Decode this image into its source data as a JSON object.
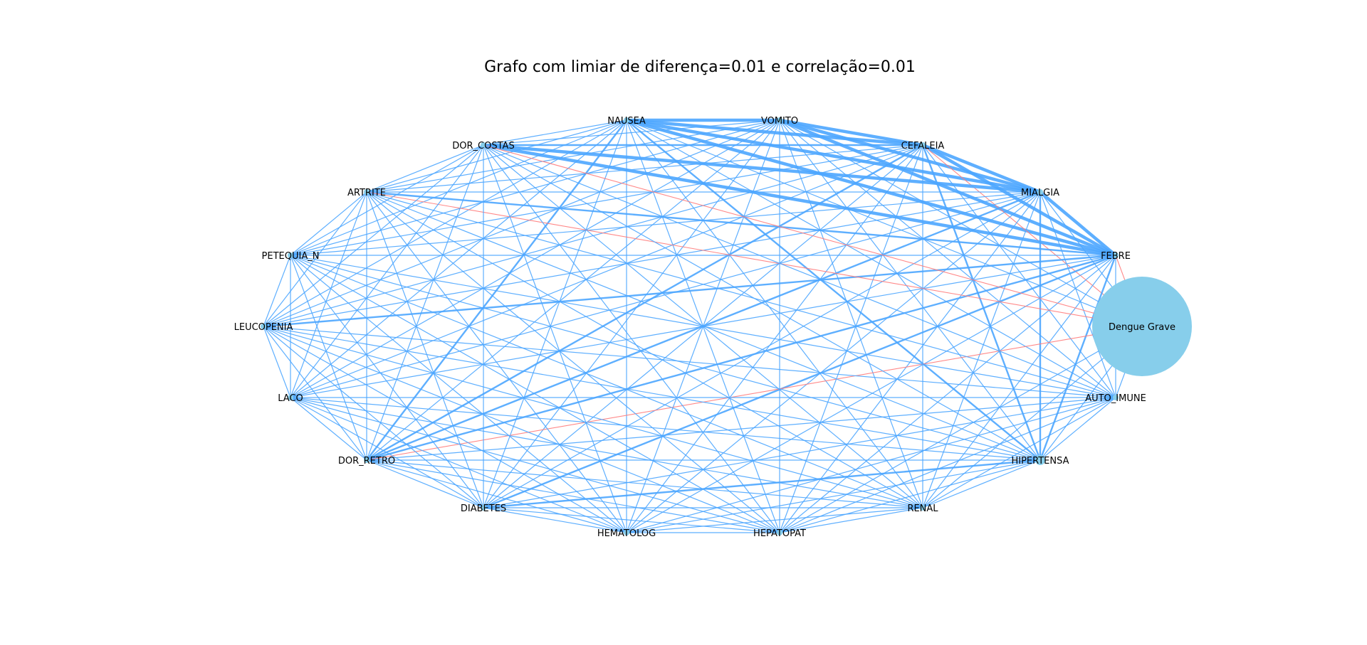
{
  "title": "Grafo com limiar de diferença=0.01 e correlação=0.01",
  "colors": {
    "positive_edge": "#4da6ff",
    "negative_edge": "#ff7b7b",
    "node": "#87ceeb",
    "label": "#000000"
  },
  "nodes": [
    {
      "id": "NAUSEA",
      "label": "NAUSEA"
    },
    {
      "id": "VOMITO",
      "label": "VOMITO"
    },
    {
      "id": "CEFALEIA",
      "label": "CEFALEIA"
    },
    {
      "id": "MIALGIA",
      "label": "MIALGIA"
    },
    {
      "id": "FEBRE",
      "label": "FEBRE"
    },
    {
      "id": "Dengue Grave",
      "label": "Dengue Grave",
      "target": true
    },
    {
      "id": "AUTO_IMUNE",
      "label": "AUTO_IMUNE"
    },
    {
      "id": "HIPERTENSA",
      "label": "HIPERTENSA"
    },
    {
      "id": "RENAL",
      "label": "RENAL"
    },
    {
      "id": "HEPATOPAT",
      "label": "HEPATOPAT"
    },
    {
      "id": "HEMATOLOG",
      "label": "HEMATOLOG"
    },
    {
      "id": "DIABETES",
      "label": "DIABETES"
    },
    {
      "id": "DOR_RETRO",
      "label": "DOR_RETRO"
    },
    {
      "id": "LACO",
      "label": "LACO"
    },
    {
      "id": "LEUCOPENIA",
      "label": "LEUCOPENIA"
    },
    {
      "id": "PETEQUIA_N",
      "label": "PETEQUIA_N"
    },
    {
      "id": "ARTRITE",
      "label": "ARTRITE"
    },
    {
      "id": "DOR_COSTAS",
      "label": "DOR_COSTAS"
    }
  ],
  "edges": {
    "negative": [
      [
        "ARTRITE",
        "Dengue Grave"
      ],
      [
        "DOR_COSTAS",
        "Dengue Grave"
      ],
      [
        "CEFALEIA",
        "Dengue Grave"
      ],
      [
        "FEBRE",
        "Dengue Grave"
      ],
      [
        "DOR_RETRO",
        "Dengue Grave"
      ]
    ],
    "strong": [
      [
        "NAUSEA",
        "VOMITO"
      ],
      [
        "NAUSEA",
        "CEFALEIA"
      ],
      [
        "NAUSEA",
        "MIALGIA"
      ],
      [
        "NAUSEA",
        "FEBRE"
      ],
      [
        "VOMITO",
        "CEFALEIA"
      ],
      [
        "VOMITO",
        "MIALGIA"
      ],
      [
        "VOMITO",
        "FEBRE"
      ],
      [
        "CEFALEIA",
        "MIALGIA"
      ],
      [
        "CEFALEIA",
        "FEBRE"
      ],
      [
        "MIALGIA",
        "FEBRE"
      ],
      [
        "DOR_COSTAS",
        "MIALGIA"
      ],
      [
        "DOR_COSTAS",
        "FEBRE"
      ]
    ],
    "medium": [
      [
        "CEFALEIA",
        "DOR_RETRO"
      ],
      [
        "MIALGIA",
        "DOR_RETRO"
      ],
      [
        "FEBRE",
        "DOR_RETRO"
      ],
      [
        "MIALGIA",
        "HIPERTENSA"
      ],
      [
        "FEBRE",
        "HIPERTENSA"
      ],
      [
        "CEFALEIA",
        "HIPERTENSA"
      ],
      [
        "NAUSEA",
        "HIPERTENSA"
      ],
      [
        "FEBRE",
        "DIABETES"
      ],
      [
        "DIABETES",
        "HIPERTENSA"
      ],
      [
        "DOR_COSTAS",
        "CEFALEIA"
      ],
      [
        "ARTRITE",
        "FEBRE"
      ],
      [
        "LEUCOPENIA",
        "FEBRE"
      ],
      [
        "NAUSEA",
        "DOR_RETRO"
      ]
    ]
  }
}
